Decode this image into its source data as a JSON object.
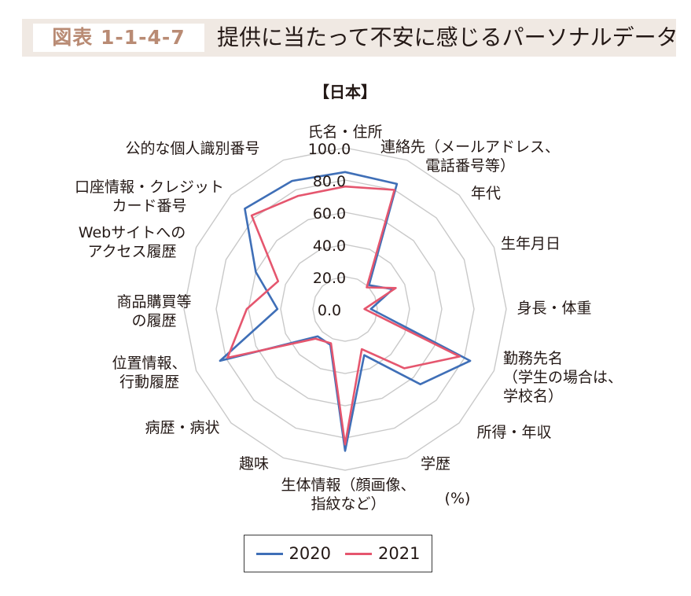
{
  "figure_number": "図表 1-1-4-7",
  "figure_title": "提供に当たって不安に感じるパーソナルデータ",
  "chart_data": {
    "type": "radar",
    "title": "【日本】",
    "unit_label": "(%)",
    "rmin": 0,
    "rmax": 100,
    "ticks": [
      0,
      20,
      40,
      60,
      80,
      100
    ],
    "tick_labels": [
      "0.0",
      "20.0",
      "40.0",
      "60.0",
      "80.0",
      "100.0"
    ],
    "axes": [
      [
        "氏名・住所"
      ],
      [
        "連絡先（メールアドレス、",
        "電話番号等）"
      ],
      [
        "年代"
      ],
      [
        "生年月日"
      ],
      [
        "身長・体重"
      ],
      [
        "勤務先名",
        "（学生の場合は、",
        "学校名）"
      ],
      [
        "所得・年収"
      ],
      [
        "学歴"
      ],
      [
        "生体情報（顔画像、",
        "指紋など）"
      ],
      [
        "趣味"
      ],
      [
        "病歴・病状"
      ],
      [
        "位置情報、",
        "行動履歴"
      ],
      [
        "商品購買等",
        "の履歴"
      ],
      [
        "Webサイトへの",
        "アクセス履歴"
      ],
      [
        "口座情報・クレジット",
        "カード番号"
      ],
      [
        "公的な個人識別番号"
      ]
    ],
    "series": [
      {
        "name": "2020",
        "color": "#3f6fb7",
        "values": [
          85,
          84,
          21,
          32,
          16,
          84,
          66,
          31,
          88,
          24,
          24,
          84,
          42,
          60,
          88,
          86
        ]
      },
      {
        "name": "2021",
        "color": "#e5566e",
        "values": [
          76,
          80,
          19,
          34,
          12,
          77,
          52,
          27,
          84,
          23,
          26,
          79,
          61,
          45,
          82,
          76
        ]
      }
    ],
    "grid": true,
    "legend_position": "bottom"
  }
}
